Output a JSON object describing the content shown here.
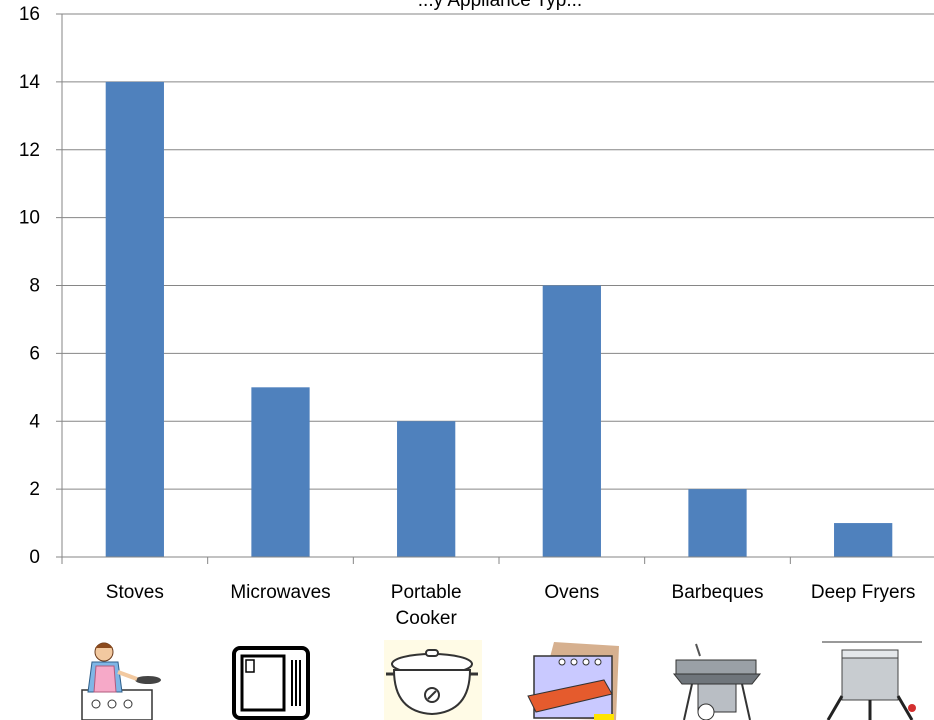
{
  "chart_data": {
    "type": "bar",
    "title": "...y Appliance Typ...",
    "categories": [
      "Stoves",
      "Microwaves",
      "Portable Cooker",
      "Ovens",
      "Barbeques",
      "Deep Fryers"
    ],
    "values": [
      14,
      5,
      4,
      8,
      2,
      1
    ],
    "ylim": [
      0,
      16
    ],
    "yticks": [
      0,
      2,
      4,
      6,
      8,
      10,
      12,
      14,
      16
    ],
    "xlabel": "",
    "ylabel": "",
    "grid": true,
    "legend": "none",
    "bar_color": "#4F81BD",
    "grid_color": "#868686"
  },
  "icons": [
    "cook-at-stove-icon",
    "microwave-icon",
    "slow-cooker-icon",
    "oven-icon",
    "barbeque-grill-icon",
    "deep-fryer-icon"
  ]
}
